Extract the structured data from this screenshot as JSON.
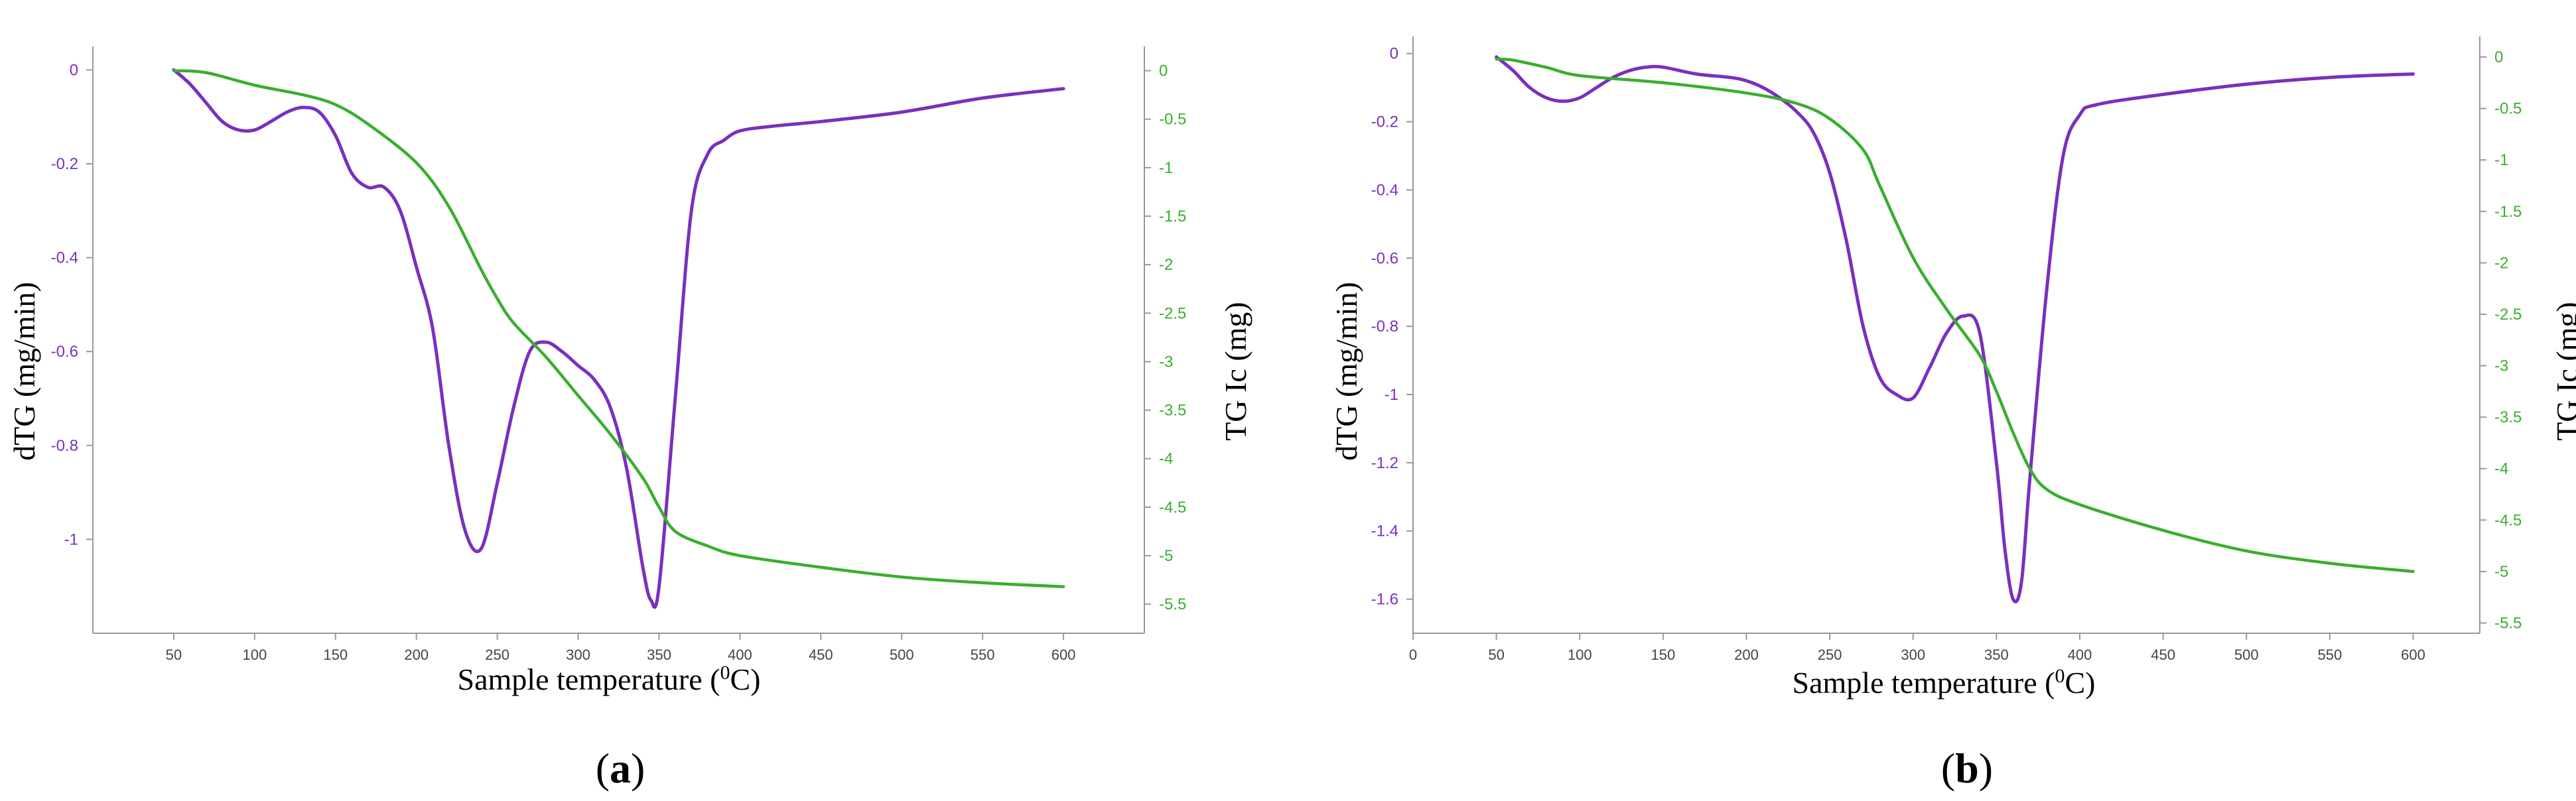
{
  "chart_data": [
    {
      "type": "line",
      "panel_label": {
        "open": "(",
        "letter": "a",
        "close": ")"
      },
      "xlabel_main": "Sample temperature (",
      "xlabel_sup": "0",
      "xlabel_tail": "C)",
      "ylabel_left": "dTG (mg/min)",
      "ylabel_right": "TG Ic (mg)",
      "x_ticks": [
        "50",
        "100",
        "150",
        "200",
        "250",
        "300",
        "350",
        "400",
        "450",
        "500",
        "550",
        "600"
      ],
      "y_left_ticks": [
        "0",
        "-0.2",
        "-0.4",
        "-0.6",
        "-0.8",
        "-1"
      ],
      "y_right_ticks": [
        "0",
        "-0.5",
        "-1",
        "-1.5",
        "-2",
        "-2.5",
        "-3",
        "-3.5",
        "-4",
        "-4.5",
        "-5",
        "-5.5"
      ],
      "xlim": [
        0,
        650
      ],
      "ylim_left": [
        -1.2,
        0.05
      ],
      "ylim_right": [
        -5.8,
        0.25
      ],
      "grid": false,
      "series": [
        {
          "axis": "left",
          "color": "#7b2fbf",
          "x": [
            50,
            60,
            70,
            80,
            90,
            100,
            110,
            120,
            130,
            140,
            150,
            160,
            170,
            180,
            190,
            200,
            210,
            220,
            230,
            240,
            250,
            260,
            270,
            280,
            290,
            300,
            310,
            320,
            330,
            340,
            345,
            350,
            360,
            370,
            380,
            390,
            400,
            420,
            450,
            500,
            550,
            600
          ],
          "y": [
            0,
            -0.03,
            -0.07,
            -0.11,
            -0.128,
            -0.128,
            -0.11,
            -0.09,
            -0.08,
            -0.09,
            -0.14,
            -0.22,
            -0.25,
            -0.25,
            -0.3,
            -0.42,
            -0.55,
            -0.8,
            -0.98,
            -1.02,
            -0.88,
            -0.72,
            -0.6,
            -0.58,
            -0.6,
            -0.63,
            -0.66,
            -0.72,
            -0.85,
            -1.06,
            -1.13,
            -1.1,
            -0.7,
            -0.3,
            -0.18,
            -0.15,
            -0.13,
            -0.12,
            -0.11,
            -0.09,
            -0.06,
            -0.04
          ]
        },
        {
          "axis": "right",
          "color": "#3aae2f",
          "x": [
            50,
            70,
            100,
            130,
            150,
            170,
            200,
            220,
            240,
            250,
            260,
            280,
            300,
            320,
            340,
            350,
            360,
            380,
            400,
            450,
            500,
            550,
            600
          ],
          "y": [
            0,
            -0.02,
            -0.15,
            -0.25,
            -0.35,
            -0.55,
            -0.95,
            -1.4,
            -2.05,
            -2.35,
            -2.6,
            -2.95,
            -3.35,
            -3.75,
            -4.2,
            -4.5,
            -4.75,
            -4.9,
            -5.0,
            -5.12,
            -5.22,
            -5.28,
            -5.32
          ]
        }
      ]
    },
    {
      "type": "line",
      "panel_label": {
        "open": "(",
        "letter": "b",
        "close": ")"
      },
      "xlabel_main": "Sample temperature (",
      "xlabel_sup": "0",
      "xlabel_tail": "C)",
      "ylabel_left": "dTG (mg/min)",
      "ylabel_right": "TG Ic (mg)",
      "x_ticks": [
        "0",
        "50",
        "100",
        "150",
        "200",
        "250",
        "300",
        "350",
        "400",
        "450",
        "500",
        "550",
        "600"
      ],
      "y_left_ticks": [
        "0",
        "-0.2",
        "-0.4",
        "-0.6",
        "-0.8",
        "-1",
        "-1.2",
        "-1.4",
        "-1.6"
      ],
      "y_right_ticks": [
        "0",
        "-0.5",
        "-1",
        "-1.5",
        "-2",
        "-2.5",
        "-3",
        "-3.5",
        "-4",
        "-4.5",
        "-5",
        "-5.5"
      ],
      "xlim": [
        0,
        640
      ],
      "ylim_left": [
        -1.7,
        0.05
      ],
      "ylim_right": [
        -5.6,
        0.2
      ],
      "grid": false,
      "series": [
        {
          "axis": "left",
          "color": "#7b2fbf",
          "x": [
            50,
            60,
            70,
            80,
            90,
            100,
            110,
            120,
            130,
            140,
            150,
            170,
            190,
            200,
            210,
            220,
            230,
            240,
            250,
            260,
            270,
            280,
            290,
            300,
            310,
            320,
            330,
            340,
            350,
            355,
            360,
            365,
            370,
            380,
            390,
            400,
            410,
            450,
            500,
            550,
            600
          ],
          "y": [
            -0.01,
            -0.05,
            -0.1,
            -0.13,
            -0.14,
            -0.13,
            -0.1,
            -0.07,
            -0.05,
            -0.04,
            -0.04,
            -0.06,
            -0.07,
            -0.08,
            -0.1,
            -0.13,
            -0.17,
            -0.23,
            -0.35,
            -0.55,
            -0.8,
            -0.95,
            -1.0,
            -1.01,
            -0.92,
            -0.82,
            -0.77,
            -0.82,
            -1.2,
            -1.45,
            -1.6,
            -1.55,
            -1.25,
            -0.7,
            -0.3,
            -0.18,
            -0.15,
            -0.12,
            -0.09,
            -0.07,
            -0.06
          ]
        },
        {
          "axis": "right",
          "color": "#3aae2f",
          "x": [
            50,
            60,
            80,
            100,
            150,
            200,
            230,
            250,
            270,
            280,
            300,
            320,
            340,
            350,
            360,
            370,
            380,
            400,
            450,
            500,
            550,
            600
          ],
          "y": [
            -0.02,
            -0.03,
            -0.1,
            -0.18,
            -0.25,
            -0.35,
            -0.45,
            -0.6,
            -0.9,
            -1.25,
            -1.95,
            -2.45,
            -2.9,
            -3.25,
            -3.65,
            -4.0,
            -4.2,
            -4.35,
            -4.6,
            -4.8,
            -4.92,
            -5.0
          ]
        }
      ]
    }
  ]
}
